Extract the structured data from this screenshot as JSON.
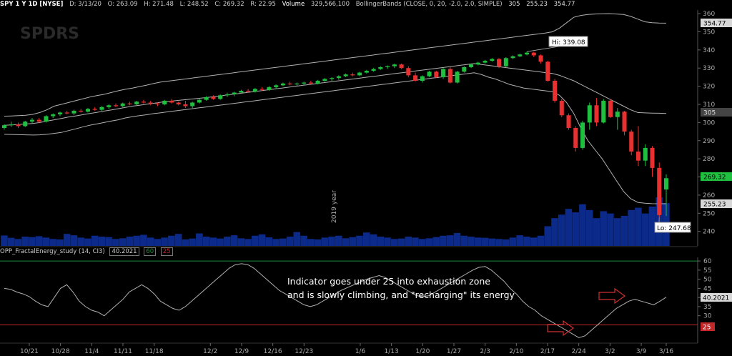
{
  "header": {
    "symbol": "SPY 1 Y 1D [NYSE]",
    "date": "D: 3/13/20",
    "open": "O: 263.09",
    "high": "H: 271.48",
    "low": "L: 248.52",
    "close": "C: 269.32",
    "range": "R: 22.95",
    "volume_label": "Volume",
    "volume_value": "329,566,100",
    "study": "BollingerBands (CLOSE, 0, 20, -2.0, 2.0, SIMPLE)",
    "bb_mid": "305",
    "bb_low": "255.23",
    "bb_up": "354.77"
  },
  "logo": "SPDRS",
  "watermark": "2019 year",
  "price_labels": {
    "hi": "Hi: 339.08",
    "lo": "Lo: 247.68",
    "bb_up": "354.77",
    "bb_mid": "305",
    "last": "269.32",
    "bb_low": "255.23"
  },
  "indicator": {
    "name": "OPP_FractalEnergy_study (14, CI3)",
    "value": "40.2021",
    "upper": "60",
    "lower": "25",
    "value_label": "40.2021",
    "level_label": "25"
  },
  "annotation": {
    "line1": "Indicator goes under 25 into exhaustion zone",
    "line2": "and is slowly climbing, and \"recharging\" its energy"
  },
  "colors": {
    "up": "#1fbf3f",
    "down": "#e83030",
    "volume": "#0b2a8a",
    "bb": "#b0b0b0",
    "indicator": "#b0b0b0",
    "level60": "#1e8c3a",
    "level25": "#c0282a",
    "arrow": "#d03030"
  },
  "chart_data": [
    {
      "type": "candlestick",
      "x_ticks": [
        "10/21",
        "10/28",
        "11/4",
        "11/11",
        "11/18",
        "12/2",
        "12/9",
        "12/16",
        "12/23",
        "1/6",
        "1/13",
        "1/20",
        "1/27",
        "2/3",
        "2/10",
        "2/17",
        "2/24",
        "3/2",
        "3/9",
        "3/16"
      ],
      "y_ticks": [
        240,
        250,
        260,
        270,
        280,
        290,
        300,
        310,
        320,
        330,
        340,
        350,
        360
      ],
      "ylim": [
        232,
        362
      ],
      "candles": [
        {
          "o": 297.0,
          "h": 299.0,
          "l": 296.0,
          "c": 298.5
        },
        {
          "o": 298.5,
          "h": 300.5,
          "l": 297.5,
          "c": 299.0
        },
        {
          "o": 299.0,
          "h": 300.0,
          "l": 297.0,
          "c": 298.0
        },
        {
          "o": 298.0,
          "h": 301.0,
          "l": 297.5,
          "c": 300.5
        },
        {
          "o": 300.5,
          "h": 302.5,
          "l": 299.5,
          "c": 301.5
        },
        {
          "o": 301.5,
          "h": 302.5,
          "l": 300.0,
          "c": 300.5
        },
        {
          "o": 300.5,
          "h": 304.0,
          "l": 300.0,
          "c": 303.5
        },
        {
          "o": 303.5,
          "h": 305.0,
          "l": 302.5,
          "c": 304.5
        },
        {
          "o": 304.5,
          "h": 306.0,
          "l": 303.5,
          "c": 305.5
        },
        {
          "o": 305.5,
          "h": 306.5,
          "l": 304.5,
          "c": 305.0
        },
        {
          "o": 305.0,
          "h": 307.0,
          "l": 304.0,
          "c": 306.5
        },
        {
          "o": 306.5,
          "h": 307.5,
          "l": 305.5,
          "c": 306.0
        },
        {
          "o": 306.0,
          "h": 308.0,
          "l": 305.5,
          "c": 307.5
        },
        {
          "o": 307.5,
          "h": 308.5,
          "l": 306.5,
          "c": 307.0
        },
        {
          "o": 307.0,
          "h": 309.0,
          "l": 306.5,
          "c": 308.5
        },
        {
          "o": 308.5,
          "h": 310.0,
          "l": 307.5,
          "c": 309.5
        },
        {
          "o": 309.5,
          "h": 310.5,
          "l": 308.5,
          "c": 309.0
        },
        {
          "o": 309.0,
          "h": 311.0,
          "l": 308.5,
          "c": 310.5
        },
        {
          "o": 310.5,
          "h": 311.5,
          "l": 309.5,
          "c": 310.0
        },
        {
          "o": 310.0,
          "h": 312.0,
          "l": 309.5,
          "c": 311.5
        },
        {
          "o": 311.5,
          "h": 312.5,
          "l": 310.5,
          "c": 311.0
        },
        {
          "o": 311.0,
          "h": 312.0,
          "l": 309.5,
          "c": 310.5
        },
        {
          "o": 310.5,
          "h": 311.0,
          "l": 309.0,
          "c": 310.0
        },
        {
          "o": 310.0,
          "h": 312.5,
          "l": 309.5,
          "c": 312.0
        },
        {
          "o": 312.0,
          "h": 313.0,
          "l": 310.5,
          "c": 311.0
        },
        {
          "o": 311.0,
          "h": 311.5,
          "l": 309.5,
          "c": 310.0
        },
        {
          "o": 310.0,
          "h": 312.0,
          "l": 308.0,
          "c": 309.0
        },
        {
          "o": 309.0,
          "h": 311.5,
          "l": 308.0,
          "c": 311.0
        },
        {
          "o": 311.0,
          "h": 313.0,
          "l": 310.5,
          "c": 312.5
        },
        {
          "o": 312.5,
          "h": 314.5,
          "l": 312.0,
          "c": 314.0
        },
        {
          "o": 314.0,
          "h": 315.0,
          "l": 312.5,
          "c": 313.0
        },
        {
          "o": 313.0,
          "h": 315.5,
          "l": 312.5,
          "c": 315.0
        },
        {
          "o": 315.0,
          "h": 316.5,
          "l": 314.0,
          "c": 315.5
        },
        {
          "o": 315.5,
          "h": 317.0,
          "l": 314.5,
          "c": 316.5
        },
        {
          "o": 316.5,
          "h": 318.0,
          "l": 316.0,
          "c": 317.5
        },
        {
          "o": 317.5,
          "h": 318.5,
          "l": 316.5,
          "c": 317.0
        },
        {
          "o": 317.0,
          "h": 319.0,
          "l": 316.5,
          "c": 318.5
        },
        {
          "o": 318.5,
          "h": 319.5,
          "l": 317.5,
          "c": 318.0
        },
        {
          "o": 318.0,
          "h": 320.0,
          "l": 317.5,
          "c": 319.5
        },
        {
          "o": 319.5,
          "h": 321.0,
          "l": 318.5,
          "c": 320.5
        },
        {
          "o": 320.5,
          "h": 322.0,
          "l": 320.0,
          "c": 321.5
        },
        {
          "o": 321.5,
          "h": 322.5,
          "l": 320.5,
          "c": 321.0
        },
        {
          "o": 321.0,
          "h": 322.0,
          "l": 320.0,
          "c": 321.5
        },
        {
          "o": 321.5,
          "h": 322.5,
          "l": 320.5,
          "c": 322.0
        },
        {
          "o": 322.0,
          "h": 323.0,
          "l": 321.0,
          "c": 321.5
        },
        {
          "o": 321.5,
          "h": 323.5,
          "l": 321.0,
          "c": 323.0
        },
        {
          "o": 323.0,
          "h": 324.5,
          "l": 322.5,
          "c": 324.0
        },
        {
          "o": 324.0,
          "h": 325.0,
          "l": 323.0,
          "c": 324.5
        },
        {
          "o": 324.5,
          "h": 326.0,
          "l": 323.5,
          "c": 325.5
        },
        {
          "o": 325.5,
          "h": 327.0,
          "l": 325.0,
          "c": 326.5
        },
        {
          "o": 326.5,
          "h": 327.5,
          "l": 325.5,
          "c": 326.0
        },
        {
          "o": 326.0,
          "h": 328.0,
          "l": 325.5,
          "c": 327.5
        },
        {
          "o": 327.5,
          "h": 329.0,
          "l": 327.0,
          "c": 328.5
        },
        {
          "o": 328.5,
          "h": 330.0,
          "l": 328.0,
          "c": 329.5
        },
        {
          "o": 329.5,
          "h": 331.0,
          "l": 329.0,
          "c": 330.5
        },
        {
          "o": 330.5,
          "h": 331.5,
          "l": 329.5,
          "c": 331.0
        },
        {
          "o": 331.0,
          "h": 332.5,
          "l": 330.0,
          "c": 332.0
        },
        {
          "o": 332.0,
          "h": 332.5,
          "l": 329.5,
          "c": 330.0
        },
        {
          "o": 330.0,
          "h": 331.0,
          "l": 325.0,
          "c": 326.0
        },
        {
          "o": 326.0,
          "h": 327.5,
          "l": 322.5,
          "c": 323.0
        },
        {
          "o": 323.0,
          "h": 326.0,
          "l": 322.0,
          "c": 325.5
        },
        {
          "o": 325.5,
          "h": 328.5,
          "l": 325.0,
          "c": 328.0
        },
        {
          "o": 328.0,
          "h": 328.5,
          "l": 324.5,
          "c": 325.0
        },
        {
          "o": 325.0,
          "h": 330.0,
          "l": 324.0,
          "c": 329.5
        },
        {
          "o": 329.5,
          "h": 330.5,
          "l": 321.5,
          "c": 322.0
        },
        {
          "o": 322.0,
          "h": 328.5,
          "l": 321.5,
          "c": 328.0
        },
        {
          "o": 328.0,
          "h": 331.0,
          "l": 327.5,
          "c": 330.5
        },
        {
          "o": 330.5,
          "h": 332.5,
          "l": 330.0,
          "c": 332.0
        },
        {
          "o": 332.0,
          "h": 333.5,
          "l": 331.5,
          "c": 333.0
        },
        {
          "o": 333.0,
          "h": 334.5,
          "l": 332.5,
          "c": 334.0
        },
        {
          "o": 334.0,
          "h": 335.5,
          "l": 333.5,
          "c": 335.0
        },
        {
          "o": 335.0,
          "h": 335.5,
          "l": 330.0,
          "c": 331.0
        },
        {
          "o": 331.0,
          "h": 336.0,
          "l": 330.5,
          "c": 335.5
        },
        {
          "o": 335.5,
          "h": 337.0,
          "l": 335.0,
          "c": 336.5
        },
        {
          "o": 336.5,
          "h": 338.0,
          "l": 336.0,
          "c": 337.5
        },
        {
          "o": 337.5,
          "h": 339.08,
          "l": 337.0,
          "c": 338.5
        },
        {
          "o": 338.5,
          "h": 339.0,
          "l": 336.0,
          "c": 337.0
        },
        {
          "o": 337.0,
          "h": 337.5,
          "l": 332.5,
          "c": 333.5
        },
        {
          "o": 333.5,
          "h": 334.0,
          "l": 322.5,
          "c": 323.0
        },
        {
          "o": 323.0,
          "h": 324.0,
          "l": 311.0,
          "c": 312.0
        },
        {
          "o": 312.0,
          "h": 313.0,
          "l": 303.0,
          "c": 304.0
        },
        {
          "o": 304.0,
          "h": 305.0,
          "l": 296.0,
          "c": 297.0
        },
        {
          "o": 297.0,
          "h": 298.0,
          "l": 284.0,
          "c": 286.0
        },
        {
          "o": 286.0,
          "h": 301.0,
          "l": 285.0,
          "c": 300.0
        },
        {
          "o": 300.0,
          "h": 311.0,
          "l": 296.0,
          "c": 309.5
        },
        {
          "o": 309.5,
          "h": 313.5,
          "l": 298.0,
          "c": 300.0
        },
        {
          "o": 300.0,
          "h": 313.0,
          "l": 299.5,
          "c": 312.0
        },
        {
          "o": 312.0,
          "h": 313.0,
          "l": 302.5,
          "c": 303.0
        },
        {
          "o": 303.0,
          "h": 308.0,
          "l": 296.0,
          "c": 306.0
        },
        {
          "o": 306.0,
          "h": 306.5,
          "l": 293.0,
          "c": 295.0
        },
        {
          "o": 295.0,
          "h": 296.0,
          "l": 282.0,
          "c": 284.0
        },
        {
          "o": 284.0,
          "h": 298.0,
          "l": 276.0,
          "c": 279.0
        },
        {
          "o": 279.0,
          "h": 288.0,
          "l": 276.0,
          "c": 286.0
        },
        {
          "o": 286.0,
          "h": 287.0,
          "l": 270.0,
          "c": 275.0
        },
        {
          "o": 275.0,
          "h": 278.0,
          "l": 247.68,
          "c": 249.0
        },
        {
          "o": 263.09,
          "h": 271.48,
          "l": 248.52,
          "c": 269.32
        }
      ],
      "volume": [
        45,
        35,
        30,
        40,
        38,
        42,
        36,
        30,
        28,
        52,
        46,
        36,
        32,
        44,
        40,
        38,
        30,
        33,
        40,
        44,
        48,
        36,
        30,
        36,
        44,
        52,
        28,
        32,
        54,
        40,
        36,
        32,
        40,
        46,
        33,
        30,
        44,
        50,
        37,
        30,
        32,
        40,
        60,
        44,
        30,
        28,
        36,
        40,
        44,
        33,
        38,
        44,
        58,
        50,
        40,
        36,
        30,
        32,
        40,
        36,
        30,
        33,
        38,
        44,
        46,
        56,
        44,
        40,
        36,
        35,
        32,
        30,
        28,
        36,
        46,
        40,
        36,
        44,
        85,
        120,
        135,
        160,
        145,
        180,
        155,
        120,
        150,
        140,
        120,
        130,
        155,
        165,
        140,
        170,
        210,
        185
      ],
      "vol_max": 210,
      "bb_upper": [
        303.5,
        303.6,
        303.8,
        304.0,
        304.5,
        305.5,
        307.0,
        309.0,
        310.0,
        311.0,
        312.0,
        313.0,
        314.0,
        314.8,
        315.5,
        316.5,
        317.5,
        318.3,
        319.0,
        319.8,
        320.6,
        321.5,
        322.3,
        322.8,
        323.3,
        323.8,
        324.3,
        324.8,
        325.3,
        325.8,
        326.3,
        326.8,
        327.3,
        327.8,
        328.3,
        328.8,
        329.3,
        329.8,
        330.3,
        330.8,
        331.3,
        331.8,
        332.3,
        332.8,
        333.3,
        333.8,
        334.3,
        334.8,
        335.3,
        335.8,
        336.3,
        336.8,
        337.3,
        337.8,
        338.3,
        338.8,
        339.3,
        339.8,
        340.3,
        340.8,
        341.3,
        341.8,
        342.3,
        342.8,
        343.3,
        343.8,
        344.3,
        344.8,
        345.3,
        345.8,
        346.3,
        346.8,
        347.3,
        347.8,
        348.3,
        348.8,
        349.3,
        350.0,
        352.0,
        355.0,
        358.0,
        359.0,
        359.5,
        359.8,
        359.9,
        360.0,
        359.8,
        359.5,
        358.5,
        357.0,
        355.5,
        355.0,
        354.8,
        354.77
      ],
      "bb_mid": [
        298.5,
        298.7,
        298.9,
        299.2,
        299.5,
        300.0,
        300.8,
        301.5,
        302.2,
        303.0,
        303.6,
        304.3,
        305.0,
        305.6,
        306.3,
        306.9,
        307.6,
        308.3,
        309.0,
        309.5,
        310.1,
        310.6,
        311.2,
        311.6,
        312.0,
        312.4,
        312.8,
        313.2,
        313.6,
        314.0,
        314.5,
        315.0,
        315.5,
        316.0,
        316.5,
        317.0,
        317.5,
        318.0,
        318.5,
        319.0,
        319.5,
        320.0,
        320.5,
        321.0,
        321.5,
        322.0,
        322.5,
        323.0,
        323.5,
        324.0,
        324.5,
        325.0,
        325.5,
        326.0,
        326.5,
        327.0,
        327.5,
        328.0,
        328.5,
        329.0,
        329.5,
        330.0,
        330.5,
        331.0,
        331.5,
        332.0,
        332.5,
        332.0,
        331.5,
        331.0,
        330.5,
        330.0,
        329.5,
        329.0,
        328.5,
        328.0,
        327.5,
        327.0,
        326.0,
        324.5,
        323.0,
        321.0,
        319.0,
        317.0,
        315.0,
        313.0,
        311.0,
        309.0,
        307.0,
        305.5,
        305.3,
        305.2,
        305.1,
        305.0
      ],
      "bb_lower": [
        293.5,
        293.4,
        293.3,
        293.2,
        293.1,
        293.2,
        293.5,
        294.0,
        294.5,
        295.5,
        296.5,
        297.5,
        298.5,
        299.2,
        300.0,
        300.8,
        301.5,
        302.5,
        303.2,
        303.8,
        304.3,
        304.9,
        305.4,
        305.9,
        306.4,
        306.9,
        307.4,
        307.9,
        308.4,
        308.9,
        309.4,
        309.9,
        310.4,
        310.9,
        311.4,
        311.9,
        312.4,
        312.9,
        313.4,
        313.9,
        314.4,
        314.9,
        315.4,
        315.9,
        316.4,
        316.9,
        317.4,
        317.9,
        318.4,
        318.9,
        319.4,
        319.9,
        320.4,
        320.9,
        321.4,
        321.9,
        322.4,
        322.9,
        323.4,
        323.9,
        324.4,
        324.9,
        325.4,
        325.9,
        326.4,
        326.9,
        327.4,
        326.5,
        325.0,
        324.0,
        322.5,
        321.0,
        320.0,
        319.0,
        318.5,
        318.0,
        317.5,
        317.0,
        315.0,
        311.0,
        305.0,
        297.0,
        290.0,
        285.0,
        280.0,
        274.0,
        268.0,
        262.0,
        258.0,
        256.0,
        255.5,
        255.3,
        255.25,
        255.23
      ]
    },
    {
      "type": "line",
      "name": "OPP_FractalEnergy_study (14, CI3)",
      "y_ticks": [
        30,
        35,
        40,
        45,
        50,
        55,
        60
      ],
      "ylim": [
        15,
        62
      ],
      "levels": [
        60,
        25
      ],
      "values": [
        45,
        44.5,
        43,
        42,
        40.5,
        38,
        36,
        35,
        40,
        45,
        47,
        43,
        38,
        35,
        33,
        32,
        30,
        33,
        36,
        39,
        43,
        45,
        47,
        45,
        42,
        38,
        36,
        34,
        33,
        35,
        38,
        41,
        44,
        47,
        50,
        53,
        56,
        58,
        58.5,
        58,
        56,
        53,
        50,
        47,
        44,
        42,
        40,
        38,
        36,
        35,
        36,
        38,
        40,
        42,
        44,
        45.5,
        47,
        48.5,
        50,
        51,
        52,
        51,
        49,
        47,
        45,
        43,
        41,
        40.5,
        41,
        43,
        45,
        47,
        49,
        51,
        53,
        55,
        56.5,
        57,
        55,
        52,
        49,
        45,
        42,
        38,
        35,
        33,
        30,
        28,
        26,
        24,
        22,
        20,
        18,
        19,
        22,
        25,
        28,
        31,
        34,
        36,
        38,
        39,
        38,
        37,
        36,
        38,
        40.2
      ]
    }
  ]
}
